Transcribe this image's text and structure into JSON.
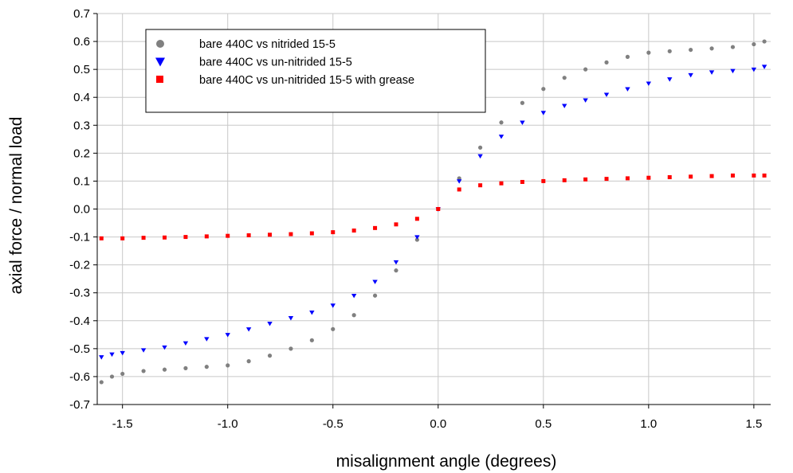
{
  "chart_data": {
    "type": "scatter",
    "title": "",
    "xlabel": "misalignment angle (degrees)",
    "ylabel": "axial force / normal load",
    "xlim": [
      -1.62,
      1.58
    ],
    "ylim": [
      -0.7,
      0.7
    ],
    "x_ticks": [
      -1.5,
      -1.0,
      -0.5,
      0.0,
      0.5,
      1.0,
      1.5
    ],
    "x_tick_labels": [
      "-1.5",
      "-1.0",
      "-0.5",
      "0.0",
      "0.5",
      "1.0",
      "1.5"
    ],
    "y_ticks": [
      -0.7,
      -0.6,
      -0.5,
      -0.4,
      -0.3,
      -0.2,
      -0.1,
      0.0,
      0.1,
      0.2,
      0.3,
      0.4,
      0.5,
      0.6,
      0.7
    ],
    "y_tick_labels": [
      "-0.7",
      "-0.6",
      "-0.5",
      "-0.4",
      "-0.3",
      "-0.2",
      "-0.1",
      "0.0",
      "0.1",
      "0.2",
      "0.3",
      "0.4",
      "0.5",
      "0.6",
      "0.7"
    ],
    "grid": true,
    "legend_position": "top-left",
    "series": [
      {
        "name": "bare 440C vs nitrided 15-5",
        "marker": "circle",
        "color": "#808080",
        "x": [
          -1.6,
          -1.55,
          -1.5,
          -1.4,
          -1.3,
          -1.2,
          -1.1,
          -1.0,
          -0.9,
          -0.8,
          -0.7,
          -0.6,
          -0.5,
          -0.4,
          -0.3,
          -0.2,
          -0.1,
          0.0,
          0.1,
          0.2,
          0.3,
          0.4,
          0.5,
          0.6,
          0.7,
          0.8,
          0.9,
          1.0,
          1.1,
          1.2,
          1.3,
          1.4,
          1.5,
          1.55
        ],
        "y": [
          -0.62,
          -0.6,
          -0.59,
          -0.58,
          -0.575,
          -0.57,
          -0.565,
          -0.56,
          -0.545,
          -0.525,
          -0.5,
          -0.47,
          -0.43,
          -0.38,
          -0.31,
          -0.22,
          -0.11,
          0.0,
          0.11,
          0.22,
          0.31,
          0.38,
          0.43,
          0.47,
          0.5,
          0.525,
          0.545,
          0.56,
          0.565,
          0.57,
          0.575,
          0.58,
          0.59,
          0.6
        ]
      },
      {
        "name": "bare 440C vs un-nitrided 15-5",
        "marker": "triangle-down",
        "color": "#0000ff",
        "x": [
          -1.6,
          -1.55,
          -1.5,
          -1.4,
          -1.3,
          -1.2,
          -1.1,
          -1.0,
          -0.9,
          -0.8,
          -0.7,
          -0.6,
          -0.5,
          -0.4,
          -0.3,
          -0.2,
          -0.1,
          0.0,
          0.1,
          0.2,
          0.3,
          0.4,
          0.5,
          0.6,
          0.7,
          0.8,
          0.9,
          1.0,
          1.1,
          1.2,
          1.3,
          1.4,
          1.5,
          1.55
        ],
        "y": [
          -0.53,
          -0.52,
          -0.515,
          -0.505,
          -0.495,
          -0.48,
          -0.465,
          -0.45,
          -0.43,
          -0.41,
          -0.39,
          -0.37,
          -0.345,
          -0.31,
          -0.26,
          -0.19,
          -0.1,
          0.0,
          0.1,
          0.19,
          0.26,
          0.31,
          0.345,
          0.37,
          0.39,
          0.41,
          0.43,
          0.45,
          0.465,
          0.48,
          0.49,
          0.495,
          0.5,
          0.51
        ]
      },
      {
        "name": "bare 440C vs un-nitrided 15-5 with grease",
        "marker": "square",
        "color": "#ff0000",
        "x": [
          -1.6,
          -1.5,
          -1.4,
          -1.3,
          -1.2,
          -1.1,
          -1.0,
          -0.9,
          -0.8,
          -0.7,
          -0.6,
          -0.5,
          -0.4,
          -0.3,
          -0.2,
          -0.1,
          0.0,
          0.1,
          0.2,
          0.3,
          0.4,
          0.5,
          0.6,
          0.7,
          0.8,
          0.9,
          1.0,
          1.1,
          1.2,
          1.3,
          1.4,
          1.5,
          1.55
        ],
        "y": [
          -0.105,
          -0.105,
          -0.103,
          -0.102,
          -0.1,
          -0.098,
          -0.096,
          -0.094,
          -0.092,
          -0.09,
          -0.087,
          -0.083,
          -0.077,
          -0.068,
          -0.055,
          -0.035,
          0.0,
          0.07,
          0.085,
          0.092,
          0.097,
          0.1,
          0.103,
          0.106,
          0.108,
          0.11,
          0.112,
          0.114,
          0.116,
          0.118,
          0.12,
          0.12,
          0.12
        ]
      }
    ]
  }
}
